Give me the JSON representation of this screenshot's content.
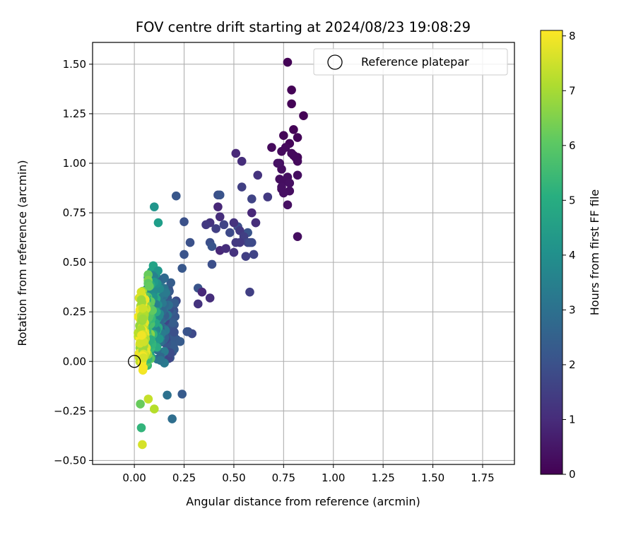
{
  "chart_data": {
    "type": "scatter",
    "title": "FOV centre drift starting at 2024/08/23 19:08:29",
    "xlabel": "Angular distance from reference (arcmin)",
    "ylabel": "Rotation from reference (arcmin)",
    "xlim": [
      -0.21,
      1.91
    ],
    "ylim": [
      -0.52,
      1.61
    ],
    "xticks": [
      "0.00",
      "0.25",
      "0.50",
      "0.75",
      "1.00",
      "1.25",
      "1.50",
      "1.75"
    ],
    "yticks": [
      "−0.50",
      "−0.25",
      "0.00",
      "0.25",
      "0.50",
      "0.75",
      "1.00",
      "1.25",
      "1.50"
    ],
    "grid": true,
    "legend": {
      "position": "top-right",
      "entries": [
        "Reference platepar"
      ]
    },
    "reference_point": {
      "x": 0.0,
      "y": 0.0,
      "marker": "hollow-circle"
    },
    "colorbar": {
      "label": "Hours from first FF file",
      "range": [
        0,
        8.1
      ],
      "ticks": [
        "0",
        "1",
        "2",
        "3",
        "4",
        "5",
        "6",
        "7",
        "8"
      ],
      "colormap": "viridis"
    },
    "series": [
      {
        "x": [
          0.77,
          0.79,
          0.79,
          0.85,
          0.8,
          0.82,
          0.75,
          0.78,
          0.8,
          0.82,
          0.69,
          0.74,
          0.76,
          0.79,
          0.81,
          0.82,
          0.73,
          0.74,
          0.77,
          0.82,
          0.73,
          0.76,
          0.74,
          0.78,
          0.82,
          0.75,
          0.77,
          0.78,
          0.74,
          0.72
        ],
        "y": [
          1.51,
          1.37,
          1.3,
          1.24,
          1.17,
          1.13,
          1.14,
          1.1,
          1.04,
          1.03,
          1.08,
          1.06,
          1.08,
          1.05,
          1.03,
          1.01,
          1.0,
          0.97,
          0.93,
          0.94,
          0.92,
          0.91,
          0.87,
          0.86,
          0.63,
          0.85,
          0.79,
          0.9,
          0.88,
          1.0
        ],
        "c": [
          0.05,
          0.05,
          0.05,
          0.05,
          0.05,
          0.1,
          0.1,
          0.1,
          0.1,
          0.1,
          0.2,
          0.2,
          0.2,
          0.2,
          0.2,
          0.2,
          0.3,
          0.3,
          0.3,
          0.3,
          0.3,
          0.3,
          0.3,
          0.3,
          0.3,
          0.35,
          0.35,
          0.35,
          0.35,
          0.4
        ]
      },
      {
        "x": [
          0.51,
          0.54,
          0.62,
          0.67,
          0.54,
          0.59,
          0.61,
          0.42,
          0.43,
          0.42,
          0.43,
          0.38,
          0.36,
          0.41,
          0.45,
          0.48,
          0.52,
          0.57,
          0.59,
          0.61,
          0.5,
          0.53,
          0.55,
          0.57,
          0.59,
          0.38,
          0.39,
          0.43,
          0.46,
          0.5,
          0.53,
          0.56,
          0.6,
          0.58,
          0.39,
          0.32,
          0.34,
          0.38,
          0.32,
          0.51,
          0.58,
          0.27,
          0.29
        ],
        "y": [
          1.05,
          1.01,
          0.94,
          0.83,
          0.88,
          0.82,
          0.7,
          0.84,
          0.84,
          0.78,
          0.73,
          0.7,
          0.69,
          0.67,
          0.69,
          0.65,
          0.68,
          0.65,
          0.75,
          0.7,
          0.7,
          0.66,
          0.63,
          0.6,
          0.6,
          0.6,
          0.58,
          0.56,
          0.57,
          0.55,
          0.6,
          0.53,
          0.54,
          0.6,
          0.49,
          0.37,
          0.35,
          0.32,
          0.29,
          0.6,
          0.35,
          0.15,
          0.14
        ]
      }
    ]
  }
}
